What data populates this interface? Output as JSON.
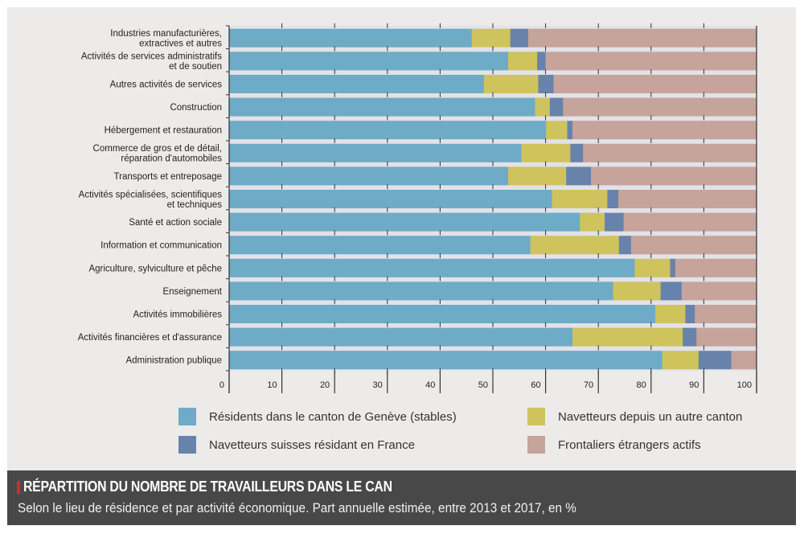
{
  "chart_data": {
    "type": "bar",
    "orientation": "horizontal",
    "stacked": true,
    "title": "RÉPARTITION DU NOMBRE DE TRAVAILLEURS DANS LE CAN",
    "subtitle": "Selon le lieu de résidence et par activité économique. Part annuelle estimée, entre 2013 et 2017, en %",
    "xlabel": "",
    "ylabel": "",
    "xlim": [
      0,
      100
    ],
    "xticks": [
      0,
      10,
      20,
      30,
      40,
      50,
      60,
      70,
      80,
      90,
      100
    ],
    "legend_position": "bottom",
    "categories": [
      [
        "Industries manufacturières,",
        "extractives et autres"
      ],
      [
        "Activités de services administratifs",
        "et de soutien"
      ],
      [
        "Autres activités de services"
      ],
      [
        "Construction"
      ],
      [
        "Hébergement et restauration"
      ],
      [
        "Commerce de gros et de détail,",
        "réparation d'automobiles"
      ],
      [
        "Transports et entreposage"
      ],
      [
        "Activités spécialisées, scientifiques",
        "et techniques"
      ],
      [
        "Santé et action sociale"
      ],
      [
        "Information et communication"
      ],
      [
        "Agriculture, sylviculture et pêche"
      ],
      [
        "Enseignement"
      ],
      [
        "Activités immobilières"
      ],
      [
        "Activités financières et d'assurance"
      ],
      [
        "Administration publique"
      ]
    ],
    "series": [
      {
        "name": "Résidents dans le canton de Genève (stables)",
        "color": "#6eabc6",
        "values": [
          46.0,
          52.9,
          48.3,
          58.0,
          60.1,
          55.4,
          52.9,
          61.2,
          66.5,
          57.1,
          76.9,
          72.8,
          80.8,
          65.1,
          82.1
        ]
      },
      {
        "name": "Navetteurs depuis un autre canton",
        "color": "#cfc35e",
        "values": [
          7.3,
          5.5,
          10.3,
          2.8,
          4.0,
          9.3,
          11.0,
          10.5,
          4.7,
          16.8,
          6.7,
          9.0,
          5.7,
          20.9,
          6.9
        ]
      },
      {
        "name": "Navetteurs suisses résidant en France",
        "color": "#6883ab",
        "values": [
          3.4,
          1.6,
          2.9,
          2.5,
          1.0,
          2.4,
          4.7,
          2.1,
          3.6,
          2.3,
          1.0,
          4.0,
          1.8,
          2.6,
          6.2
        ]
      },
      {
        "name": "Frontaliers étrangers actifs",
        "color": "#c6a49b",
        "values": [
          43.3,
          40.0,
          38.5,
          36.7,
          34.9,
          32.9,
          31.4,
          26.2,
          25.2,
          23.8,
          15.4,
          14.2,
          11.7,
          11.4,
          4.8
        ]
      }
    ]
  },
  "legend": {
    "items": [
      {
        "label": "Résidents dans le canton de Genève (stables)",
        "color": "#6eabc6"
      },
      {
        "label": "Navetteurs depuis un autre canton",
        "color": "#cfc35e"
      },
      {
        "label": "Navetteurs suisses résidant en France",
        "color": "#6883ab"
      },
      {
        "label": "Frontaliers étrangers actifs",
        "color": "#c6a49b"
      }
    ]
  },
  "colors": {
    "panel_background": "#ecebe9",
    "title_bar_background": "#484848",
    "title_accent": "#d42b2b",
    "gridline": "#e2e2e8"
  }
}
